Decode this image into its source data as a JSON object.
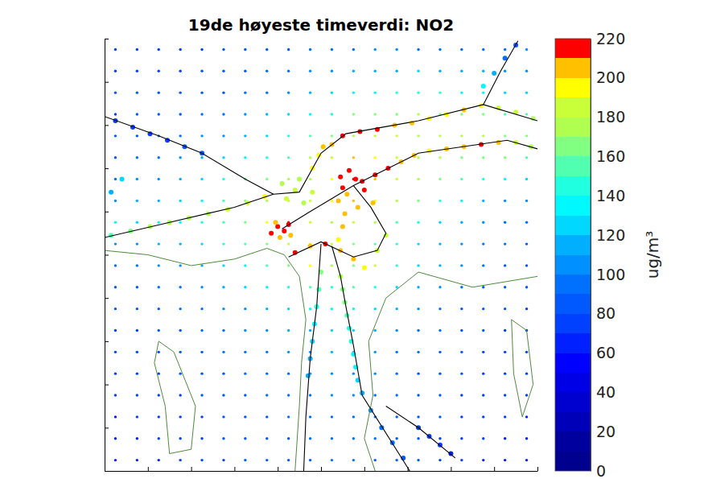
{
  "chart_data": {
    "type": "scatter",
    "title": "19de høyeste timeverdi: NO2",
    "xlim": [
      0,
      20
    ],
    "ylim": [
      0,
      20
    ],
    "xticks": [
      0,
      2,
      4,
      6,
      8,
      10,
      12,
      14,
      16,
      18,
      20
    ],
    "yticks": [
      0,
      2,
      4,
      6,
      8,
      10,
      12,
      14,
      16,
      18,
      20
    ],
    "tick_labels": false,
    "grid_points": {
      "x": [
        0.5,
        1.5,
        2.5,
        3.5,
        4.5,
        5.5,
        6.5,
        7.5,
        8.5,
        9.5,
        10.5,
        11.5,
        12.5,
        13.5,
        14.5,
        15.5,
        16.5,
        17.5,
        18.5,
        19.5
      ],
      "y": [
        19.5,
        18.5,
        17.5,
        16.5,
        15.5,
        14.5,
        13.5,
        12.5,
        11.5,
        10.5,
        9.5,
        8.5,
        7.5,
        6.5,
        5.5,
        4.5,
        3.5,
        2.5,
        1.5,
        0.5
      ],
      "values": [
        [
          70,
          72,
          74,
          76,
          78,
          80,
          82,
          85,
          88,
          92,
          95,
          98,
          100,
          100,
          98,
          95,
          92,
          90,
          95,
          100
        ],
        [
          72,
          75,
          76,
          78,
          80,
          82,
          85,
          90,
          95,
          100,
          105,
          110,
          115,
          118,
          120,
          118,
          115,
          110,
          108,
          105
        ],
        [
          85,
          80,
          80,
          82,
          84,
          88,
          92,
          98,
          105,
          112,
          120,
          130,
          138,
          142,
          145,
          140,
          135,
          130,
          125,
          120
        ],
        [
          78,
          88,
          85,
          86,
          90,
          95,
          102,
          110,
          120,
          130,
          145,
          160,
          165,
          168,
          170,
          168,
          165,
          160,
          155,
          150
        ],
        [
          82,
          84,
          90,
          95,
          100,
          108,
          118,
          128,
          140,
          150,
          165,
          175,
          180,
          180,
          178,
          175,
          172,
          170,
          168,
          160
        ],
        [
          88,
          92,
          98,
          105,
          115,
          125,
          135,
          148,
          158,
          170,
          185,
          200,
          190,
          180,
          175,
          170,
          168,
          165,
          160,
          150
        ],
        [
          95,
          100,
          108,
          118,
          128,
          140,
          155,
          165,
          172,
          178,
          195,
          210,
          200,
          185,
          170,
          160,
          150,
          140,
          130,
          120
        ],
        [
          105,
          110,
          118,
          128,
          138,
          150,
          162,
          172,
          180,
          185,
          190,
          205,
          195,
          175,
          160,
          145,
          130,
          118,
          108,
          100
        ],
        [
          130,
          128,
          130,
          135,
          142,
          152,
          165,
          190,
          210,
          180,
          175,
          185,
          170,
          155,
          140,
          125,
          112,
          102,
          95,
          90
        ],
        [
          100,
          105,
          110,
          118,
          128,
          140,
          150,
          165,
          185,
          195,
          180,
          165,
          150,
          140,
          128,
          115,
          105,
          98,
          92,
          88
        ],
        [
          92,
          96,
          100,
          108,
          115,
          125,
          135,
          150,
          160,
          190,
          175,
          160,
          180,
          145,
          128,
          112,
          100,
          92,
          88,
          85
        ],
        [
          85,
          88,
          92,
          98,
          105,
          112,
          120,
          130,
          142,
          150,
          148,
          150,
          140,
          125,
          112,
          100,
          92,
          86,
          82,
          80
        ],
        [
          80,
          82,
          86,
          90,
          96,
          102,
          108,
          115,
          122,
          130,
          138,
          135,
          125,
          112,
          102,
          95,
          88,
          82,
          80,
          78
        ],
        [
          76,
          78,
          82,
          86,
          90,
          95,
          100,
          105,
          110,
          118,
          125,
          122,
          115,
          105,
          96,
          90,
          85,
          80,
          78,
          76
        ],
        [
          74,
          76,
          78,
          82,
          86,
          90,
          94,
          98,
          102,
          108,
          115,
          112,
          106,
          98,
          90,
          86,
          82,
          78,
          76,
          74
        ],
        [
          72,
          74,
          76,
          80,
          82,
          86,
          90,
          94,
          98,
          102,
          108,
          106,
          100,
          94,
          88,
          84,
          80,
          76,
          74,
          72
        ],
        [
          70,
          72,
          74,
          76,
          80,
          84,
          88,
          90,
          94,
          98,
          102,
          100,
          96,
          90,
          86,
          82,
          78,
          74,
          72,
          70
        ],
        [
          68,
          70,
          72,
          74,
          78,
          82,
          86,
          88,
          90,
          94,
          98,
          96,
          92,
          88,
          84,
          80,
          76,
          72,
          70,
          68
        ],
        [
          66,
          68,
          70,
          72,
          76,
          80,
          84,
          86,
          88,
          90,
          94,
          94,
          90,
          86,
          82,
          78,
          74,
          70,
          68,
          66
        ],
        [
          64,
          66,
          68,
          70,
          74,
          78,
          82,
          84,
          86,
          88,
          92,
          92,
          88,
          84,
          80,
          76,
          72,
          68,
          66,
          64
        ]
      ]
    },
    "points": [
      [
        0.3,
        10.9,
        150
      ],
      [
        1.2,
        11.1,
        165
      ],
      [
        2.1,
        11.3,
        170
      ],
      [
        3.0,
        11.5,
        175
      ],
      [
        3.9,
        11.7,
        170
      ],
      [
        4.8,
        11.9,
        175
      ],
      [
        5.7,
        12.1,
        180
      ],
      [
        6.6,
        12.4,
        185
      ],
      [
        7.4,
        12.7,
        190
      ],
      [
        7.7,
        11.0,
        210
      ],
      [
        8.0,
        11.3,
        215
      ],
      [
        8.3,
        11.1,
        220
      ],
      [
        8.1,
        10.8,
        205
      ],
      [
        7.9,
        11.5,
        200
      ],
      [
        8.5,
        11.4,
        210
      ],
      [
        8.6,
        10.9,
        200
      ],
      [
        8.4,
        12.6,
        185
      ],
      [
        8.8,
        13.0,
        180
      ],
      [
        9.2,
        12.4,
        175
      ],
      [
        9.0,
        13.5,
        178
      ],
      [
        8.2,
        13.3,
        172
      ],
      [
        9.6,
        12.9,
        182
      ],
      [
        9.6,
        14.0,
        190
      ],
      [
        9.9,
        14.6,
        195
      ],
      [
        10.1,
        15.0,
        200
      ],
      [
        10.5,
        15.1,
        205
      ],
      [
        11.0,
        15.5,
        210
      ],
      [
        11.8,
        15.7,
        215
      ],
      [
        12.6,
        15.8,
        210
      ],
      [
        13.4,
        16.0,
        205
      ],
      [
        14.2,
        16.1,
        200
      ],
      [
        15.0,
        16.3,
        195
      ],
      [
        15.8,
        16.5,
        190
      ],
      [
        16.6,
        16.7,
        200
      ],
      [
        17.4,
        16.9,
        195
      ],
      [
        18.2,
        16.8,
        185
      ],
      [
        19.0,
        16.6,
        180
      ],
      [
        19.8,
        16.3,
        175
      ],
      [
        11.9,
        13.4,
        210
      ],
      [
        12.5,
        13.7,
        215
      ],
      [
        13.1,
        14.0,
        210
      ],
      [
        13.7,
        14.3,
        205
      ],
      [
        14.3,
        14.6,
        200
      ],
      [
        15.0,
        14.8,
        195
      ],
      [
        15.8,
        14.9,
        200
      ],
      [
        16.6,
        15.0,
        205
      ],
      [
        17.4,
        15.1,
        210
      ],
      [
        18.2,
        15.2,
        200
      ],
      [
        19.0,
        15.2,
        185
      ],
      [
        19.7,
        15.0,
        175
      ],
      [
        10.9,
        13.6,
        215
      ],
      [
        11.3,
        13.9,
        220
      ],
      [
        11.6,
        13.5,
        215
      ],
      [
        12.0,
        13.0,
        210
      ],
      [
        11.2,
        12.8,
        205
      ],
      [
        10.8,
        12.5,
        200
      ],
      [
        12.4,
        12.4,
        200
      ],
      [
        11.7,
        12.2,
        205
      ],
      [
        11.0,
        13.1,
        212
      ],
      [
        11.1,
        11.9,
        205
      ],
      [
        11.0,
        11.3,
        200
      ],
      [
        10.8,
        10.7,
        195
      ],
      [
        8.8,
        10.1,
        210
      ],
      [
        9.5,
        10.4,
        205
      ],
      [
        10.2,
        10.5,
        215
      ],
      [
        10.9,
        10.2,
        200
      ],
      [
        11.5,
        9.8,
        205
      ],
      [
        12.0,
        9.4,
        195
      ],
      [
        12.6,
        10.2,
        185
      ],
      [
        13.0,
        10.9,
        180
      ],
      [
        10.9,
        9.0,
        175
      ],
      [
        11.0,
        8.4,
        165
      ],
      [
        11.1,
        7.8,
        160
      ],
      [
        11.2,
        7.2,
        150
      ],
      [
        11.3,
        6.6,
        145
      ],
      [
        11.4,
        6.0,
        140
      ],
      [
        11.5,
        5.4,
        135
      ],
      [
        11.6,
        4.8,
        130
      ],
      [
        11.7,
        4.2,
        120
      ],
      [
        11.9,
        3.6,
        110
      ],
      [
        12.3,
        2.8,
        100
      ],
      [
        12.8,
        2.0,
        95
      ],
      [
        13.3,
        1.3,
        90
      ],
      [
        13.8,
        0.6,
        85
      ],
      [
        10.0,
        9.2,
        160
      ],
      [
        9.9,
        8.4,
        150
      ],
      [
        9.8,
        7.6,
        140
      ],
      [
        9.7,
        6.8,
        130
      ],
      [
        9.6,
        6.0,
        122
      ],
      [
        9.5,
        5.2,
        115
      ],
      [
        9.4,
        4.4,
        110
      ],
      [
        0.5,
        16.2,
        70
      ],
      [
        1.3,
        15.9,
        75
      ],
      [
        2.1,
        15.6,
        72
      ],
      [
        2.9,
        15.3,
        78
      ],
      [
        3.7,
        15.0,
        80
      ],
      [
        4.5,
        14.7,
        85
      ],
      [
        17.5,
        17.8,
        130
      ],
      [
        18.0,
        18.4,
        110
      ],
      [
        18.5,
        19.1,
        95
      ],
      [
        19.0,
        19.7,
        85
      ],
      [
        14.5,
        2.0,
        75
      ],
      [
        15.0,
        1.6,
        70
      ],
      [
        15.5,
        1.2,
        72
      ],
      [
        16.0,
        0.8,
        68
      ],
      [
        0.3,
        12.9,
        110
      ],
      [
        0.8,
        13.5,
        120
      ]
    ],
    "roads": [
      [
        [
          0,
          10.8
        ],
        [
          3,
          11.5
        ],
        [
          6,
          12.2
        ],
        [
          7.8,
          12.8
        ],
        [
          9,
          12.9
        ],
        [
          10,
          14.7
        ],
        [
          11.15,
          15.6
        ],
        [
          14.5,
          16.2
        ],
        [
          17.5,
          16.95
        ],
        [
          20,
          16.2
        ]
      ],
      [
        [
          8.2,
          11.2
        ],
        [
          9.5,
          12.0
        ],
        [
          11.5,
          13.2
        ],
        [
          14.5,
          14.7
        ],
        [
          18.6,
          15.3
        ],
        [
          20,
          14.9
        ]
      ],
      [
        [
          8.5,
          9.9
        ],
        [
          10.0,
          10.6
        ],
        [
          11.5,
          9.9
        ],
        [
          12.6,
          10.2
        ],
        [
          13.0,
          11.0
        ],
        [
          12.3,
          12.2
        ],
        [
          11.5,
          13.2
        ]
      ],
      [
        [
          10.5,
          10.4
        ],
        [
          10.9,
          9.0
        ],
        [
          11.15,
          7.6
        ],
        [
          11.5,
          5.8
        ],
        [
          11.9,
          3.5
        ],
        [
          14.1,
          0
        ]
      ],
      [
        [
          10.0,
          10.5
        ],
        [
          9.8,
          7.6
        ],
        [
          9.5,
          5.2
        ],
        [
          9.3,
          2.5
        ],
        [
          9.2,
          0
        ]
      ],
      [
        [
          0,
          16.4
        ],
        [
          2.5,
          15.5
        ],
        [
          4.5,
          14.7
        ],
        [
          6.5,
          13.5
        ],
        [
          7.8,
          12.8
        ]
      ],
      [
        [
          17.5,
          16.95
        ],
        [
          18.3,
          18.5
        ],
        [
          19.1,
          19.9
        ]
      ],
      [
        [
          13.0,
          3.0
        ],
        [
          14.5,
          2.0
        ],
        [
          16.2,
          0.6
        ]
      ]
    ],
    "coastline": [
      [
        [
          0,
          10.2
        ],
        [
          2,
          10.0
        ],
        [
          4,
          9.5
        ],
        [
          6,
          9.8
        ],
        [
          7.5,
          10.3
        ],
        [
          8.3,
          10.0
        ],
        [
          9.0,
          9.0
        ],
        [
          9.3,
          7.0
        ],
        [
          9.1,
          5.0
        ],
        [
          9.0,
          3.0
        ],
        [
          8.8,
          0
        ]
      ],
      [
        [
          20,
          9.0
        ],
        [
          17,
          8.5
        ],
        [
          14.5,
          9.2
        ],
        [
          13.0,
          8.0
        ],
        [
          12.2,
          6.0
        ],
        [
          12.4,
          3.5
        ],
        [
          12.0,
          1.5
        ],
        [
          12.5,
          0
        ]
      ],
      [
        [
          2.5,
          6.0
        ],
        [
          3.2,
          5.5
        ],
        [
          4.2,
          3.0
        ],
        [
          4.0,
          1.0
        ],
        [
          3.0,
          0.8
        ],
        [
          2.8,
          3.0
        ],
        [
          2.3,
          5.0
        ],
        [
          2.5,
          6.0
        ]
      ],
      [
        [
          18.8,
          7.0
        ],
        [
          19.5,
          6.5
        ],
        [
          19.8,
          4.0
        ],
        [
          19.3,
          2.5
        ],
        [
          18.9,
          4.5
        ],
        [
          18.8,
          7.0
        ]
      ]
    ],
    "colorbar": {
      "range": [
        0,
        220
      ],
      "ticks": [
        0,
        20,
        40,
        60,
        80,
        100,
        120,
        140,
        160,
        180,
        200,
        220
      ],
      "colors": [
        "#00008f",
        "#00009f",
        "#0000b8",
        "#0000cf",
        "#0000e6",
        "#0000ff",
        "#0020ff",
        "#0040ff",
        "#0058ff",
        "#0070ff",
        "#0090ff",
        "#00b0ff",
        "#00d8ff",
        "#00f8ff",
        "#20ffe0",
        "#50ffb0",
        "#80ff80",
        "#b0ff50",
        "#c8ff38",
        "#ffff00",
        "#ffc000",
        "#ff0000"
      ],
      "label": "ug/m³"
    }
  }
}
